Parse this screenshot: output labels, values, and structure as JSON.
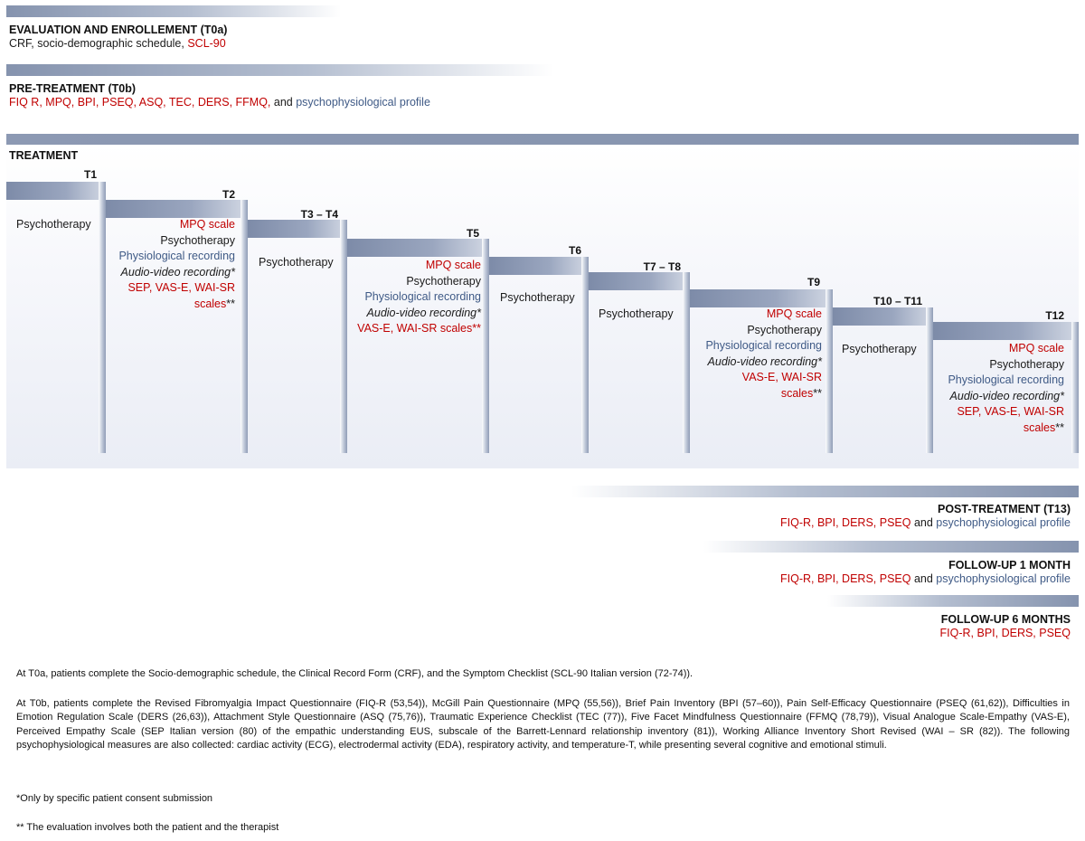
{
  "eval": {
    "title": "EVALUATION AND ENROLLEMENT (T0a)",
    "line_black": "CRF, socio-demographic schedule, ",
    "line_red": "SCL-90"
  },
  "pre": {
    "title": "PRE-TREATMENT (T0b)",
    "line_red": "FIQ R, MPQ, BPI, PSEQ, ASQ, TEC, DERS, FFMQ,",
    "line_and": " and ",
    "line_blue": "psychophysiological profile"
  },
  "treatment": {
    "title": "TREATMENT",
    "steps": [
      {
        "label": "T1",
        "lines": [
          "Psychotherapy"
        ]
      },
      {
        "label": "T2",
        "lines": [
          "MPQ scale",
          "Psychotherapy",
          "Physiological recording",
          "Audio-video recording*",
          "SEP, VAS-E, WAI-SR",
          "scales**"
        ]
      },
      {
        "label": "T3 – T4",
        "lines": [
          "Psychotherapy"
        ]
      },
      {
        "label": "T5",
        "lines": [
          "MPQ scale",
          "Psychotherapy",
          "Physiological recording",
          "Audio-video recording*",
          "VAS-E, WAI-SR scales**"
        ]
      },
      {
        "label": "T6",
        "lines": [
          "Psychotherapy"
        ]
      },
      {
        "label": "T7 – T8",
        "lines": [
          "Psychotherapy"
        ]
      },
      {
        "label": "T9",
        "lines": [
          "MPQ scale",
          "Psychotherapy",
          "Physiological recording",
          "Audio-video recording*",
          "VAS-E, WAI-SR",
          "scales**"
        ]
      },
      {
        "label": "T10 – T11",
        "lines": [
          "Psychotherapy"
        ]
      },
      {
        "label": "T12",
        "lines": [
          "MPQ scale",
          "Psychotherapy",
          "Physiological recording",
          "Audio-video recording*",
          "SEP, VAS-E, WAI-SR",
          "scales**"
        ]
      }
    ],
    "marks": {
      "single": "*",
      "double": "**"
    }
  },
  "post": {
    "title": "POST-TREATMENT (T13)",
    "line_red": "FIQ-R, BPI, DERS, PSEQ",
    "line_and": " and ",
    "line_blue": "psychophysiological profile"
  },
  "fu1": {
    "title": "FOLLOW-UP 1 MONTH",
    "line_red": "FIQ-R, BPI, DERS, PSEQ",
    "line_and": " and ",
    "line_blue": "psychophysiological profile"
  },
  "fu6": {
    "title": "FOLLOW-UP 6 MONTHS",
    "line_red": "FIQ-R, BPI, DERS, PSEQ"
  },
  "footnotes": {
    "t0a": "At T0a, patients complete the Socio-demographic schedule, the Clinical Record Form (CRF), and the Symptom Checklist (SCL-90 Italian version (72-74)).",
    "t0b": "At T0b, patients complete the Revised Fibromyalgia Impact Questionnaire (FIQ-R (53,54)), McGill Pain Questionnaire (MPQ (55,56)), Brief Pain Inventory (BPI (57–60)), Pain Self-Efficacy Questionnaire (PSEQ (61,62)), Difficulties in Emotion Regulation Scale (DERS (26,63)), Attachment Style Questionnaire (ASQ (75,76)), Traumatic Experience Checklist (TEC (77)), Five Facet Mindfulness Questionnaire (FFMQ (78,79)), Visual Analogue Scale-Empathy (VAS-E), Perceived Empathy Scale (SEP Italian version (80) of the empathic understanding EUS, subscale of the Barrett-Lennard relationship inventory (81)), Working Alliance Inventory Short Revised (WAI – SR (82)). The following psychophysiological measures are also collected: cardiac activity (ECG), electrodermal activity (EDA), respiratory activity, and temperature-T, while presenting several cognitive and emotional stimuli.",
    "consent": "*Only by specific patient consent submission",
    "both": "** The evaluation involves both the patient and the therapist"
  },
  "colors": {
    "red": "#c00000",
    "blue": "#3f5a86",
    "bar": "#8593ae"
  }
}
